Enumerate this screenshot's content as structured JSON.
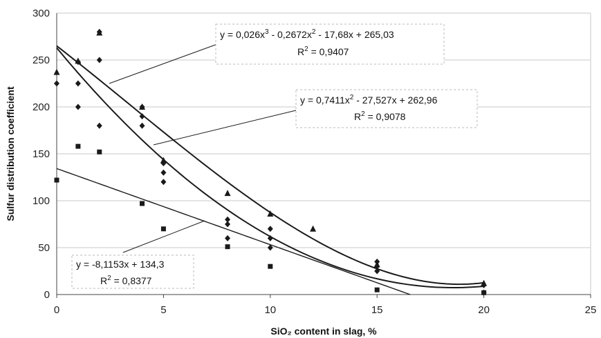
{
  "chart_data": {
    "type": "scatter",
    "xlabel": "SiO₂ content in slag, %",
    "ylabel": "Sulfur distribution coefficient",
    "xlim": [
      0,
      25
    ],
    "ylim": [
      0,
      300
    ],
    "xticks": [
      "0",
      "5",
      "10",
      "15",
      "20",
      "25"
    ],
    "yticks": [
      "0",
      "50",
      "100",
      "150",
      "200",
      "250",
      "300"
    ],
    "grid": "horizontal",
    "series": [
      {
        "marker": "triangle",
        "points": [
          [
            0,
            237
          ],
          [
            1,
            249
          ],
          [
            2,
            279
          ],
          [
            4,
            200
          ],
          [
            5,
            143
          ],
          [
            8,
            108
          ],
          [
            10,
            86
          ],
          [
            12,
            70
          ],
          [
            15,
            32
          ],
          [
            20,
            12
          ]
        ]
      },
      {
        "marker": "diamond",
        "points": [
          [
            0,
            225
          ],
          [
            1,
            248
          ],
          [
            1,
            225
          ],
          [
            1,
            200
          ],
          [
            2,
            280
          ],
          [
            2,
            250
          ],
          [
            2,
            180
          ],
          [
            4,
            200
          ],
          [
            4,
            190
          ],
          [
            4,
            180
          ],
          [
            5,
            140
          ],
          [
            5,
            130
          ],
          [
            5,
            120
          ],
          [
            8,
            80
          ],
          [
            8,
            75
          ],
          [
            8,
            60
          ],
          [
            10,
            70
          ],
          [
            10,
            60
          ],
          [
            10,
            50
          ],
          [
            15,
            35
          ],
          [
            15,
            30
          ],
          [
            15,
            25
          ],
          [
            20,
            10
          ],
          [
            20,
            2
          ]
        ]
      },
      {
        "marker": "square",
        "points": [
          [
            0,
            122
          ],
          [
            1,
            158
          ],
          [
            2,
            152
          ],
          [
            4,
            97
          ],
          [
            5,
            70
          ],
          [
            8,
            51
          ],
          [
            10,
            30
          ],
          [
            15,
            5
          ],
          [
            20,
            2
          ]
        ]
      }
    ],
    "trendlines": [
      {
        "kind": "cubic",
        "coefficients": [
          265.03,
          -17.68,
          -0.2672,
          0.026
        ],
        "x_range": [
          0,
          20
        ],
        "equation": "y = 0,026x",
        "eq_sup1": "3",
        "eq_mid": " - 0,2672x",
        "eq_sup2": "2",
        "eq_tail": " - 17,68x + 265,03",
        "r2_prefix": "R",
        "r2_sup": "2",
        "r2_value": " = 0,9407"
      },
      {
        "kind": "quadratic",
        "coefficients": [
          262.96,
          -27.527,
          0.7411
        ],
        "x_range": [
          0,
          20
        ],
        "equation": "y = 0,7411x",
        "eq_sup1": "2",
        "eq_tail": " - 27,527x + 262,96",
        "r2_prefix": "R",
        "r2_sup": "2",
        "r2_value": " = 0,9078"
      },
      {
        "kind": "linear",
        "coefficients": [
          134.3,
          -8.1153
        ],
        "x_range": [
          0,
          16.55
        ],
        "equation": "y = -8,1153x + 134,3",
        "r2_prefix": "R",
        "r2_sup": "2",
        "r2_value": " = 0,8377"
      }
    ],
    "colors": {
      "markers": "#1a1a1a",
      "lines": "#1a1a1a",
      "grid": "#c8c8c8",
      "axis": "#444444"
    }
  }
}
